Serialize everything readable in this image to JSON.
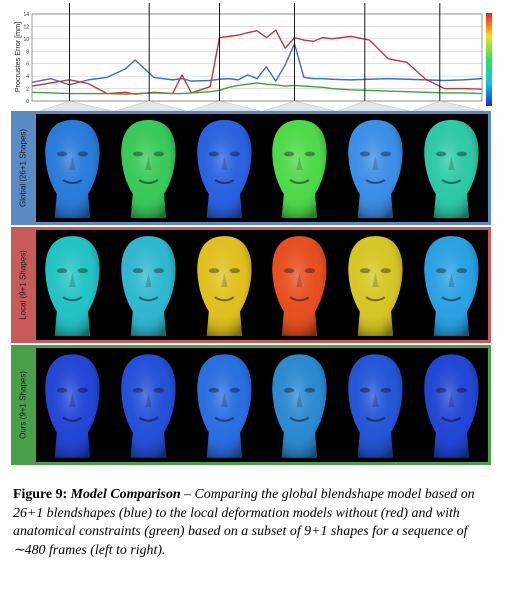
{
  "chart_data": {
    "type": "line",
    "ylabel": "Procrustes Error [mm]",
    "ylim": [
      0,
      14
    ],
    "yticks": [
      "0",
      "2",
      "4",
      "6",
      "8",
      "10",
      "12",
      "14"
    ],
    "xlim": [
      0,
      480
    ],
    "x": [
      0,
      20,
      40,
      60,
      80,
      100,
      110,
      130,
      150,
      160,
      170,
      190,
      200,
      210,
      220,
      230,
      240,
      250,
      260,
      270,
      280,
      290,
      300,
      310,
      320,
      340,
      360,
      380,
      400,
      420,
      440,
      460,
      480
    ],
    "series": [
      {
        "color": "#3c6fbf",
        "values": [
          3.0,
          3.6,
          2.6,
          3.4,
          3.8,
          5.2,
          6.6,
          3.8,
          3.4,
          3.6,
          3.2,
          3.3,
          3.5,
          3.6,
          3.4,
          4.2,
          3.6,
          5.5,
          3.2,
          5.8,
          9.2,
          3.8,
          3.6,
          3.6,
          3.5,
          3.4,
          3.5,
          3.6,
          3.5,
          3.4,
          3.3,
          3.4,
          3.6
        ]
      },
      {
        "color": "#c0383a",
        "values": [
          2.4,
          2.9,
          3.4,
          2.8,
          1.2,
          1.4,
          1.1,
          1.4,
          1.2,
          4.2,
          1.3,
          2.3,
          10.2,
          10.4,
          10.6,
          11.0,
          11.3,
          10.2,
          11.4,
          8.5,
          10.2,
          9.8,
          9.6,
          10.2,
          10.0,
          10.4,
          9.8,
          6.8,
          6.2,
          3.5,
          2.0,
          2.0,
          1.9
        ]
      },
      {
        "color": "#3aa33a",
        "values": [
          1.4,
          1.3,
          1.2,
          1.2,
          1.2,
          1.1,
          1.2,
          1.3,
          1.2,
          1.2,
          1.3,
          1.5,
          1.7,
          2.2,
          2.5,
          2.7,
          2.9,
          2.7,
          2.6,
          2.4,
          2.5,
          2.4,
          2.3,
          2.2,
          2.0,
          1.8,
          1.7,
          1.6,
          1.5,
          1.4,
          1.3,
          1.3,
          1.2
        ]
      }
    ],
    "markers": [
      40,
      125,
      200,
      280,
      355,
      435
    ]
  },
  "colors": {
    "panel_blue": "#5b8bc4",
    "panel_red": "#c95a5a",
    "panel_green": "#4aa04a"
  },
  "panels": [
    {
      "name": "global",
      "label": "Global (26+1 Shapes)",
      "faces": [
        "#2b7bdb",
        "#3ac95a",
        "#2a62e0",
        "#4fd94a",
        "#3c8ee6",
        "#2fc9a6"
      ]
    },
    {
      "name": "local",
      "label": "Local (9+1 Shapes)",
      "faces": [
        "#24c3c4",
        "#30b8d0",
        "#e0c020",
        "#e65020",
        "#d6c626",
        "#2aa2e2"
      ]
    },
    {
      "name": "ours",
      "label": "Ours (9+1 Shapes)",
      "faces": [
        "#2446d6",
        "#2550d8",
        "#2a6ee0",
        "#2c8ad0",
        "#2456d6",
        "#2346d4"
      ]
    }
  ],
  "caption": {
    "figure": "Figure 9:",
    "heading": "Model Comparison",
    "dash": " – ",
    "body": "Comparing the global blendshape model based on 26+1 blendshapes (blue) to the local deformation models without (red) and with anatomical constraints (green) based on a subset of 9+1 shapes for a sequence of ∼480 frames (left to right)."
  }
}
